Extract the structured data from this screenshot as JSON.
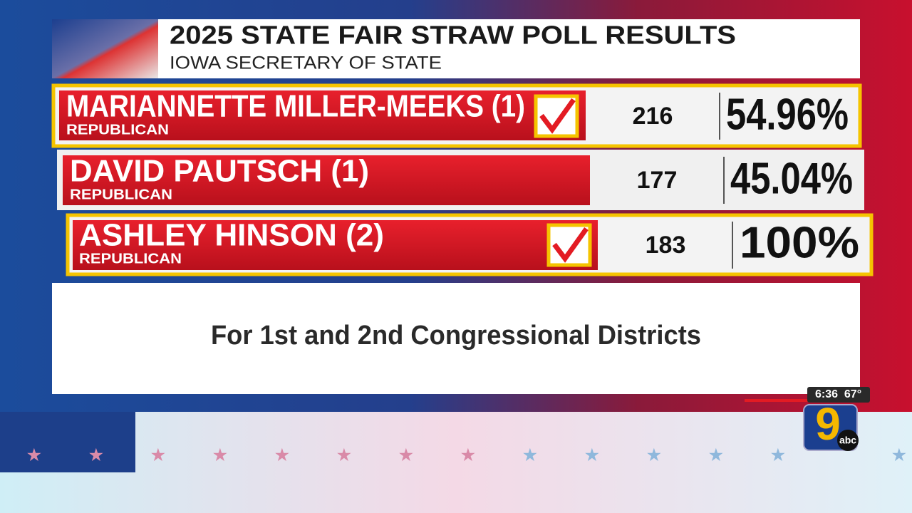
{
  "header": {
    "title": "2025 STATE FAIR STRAW POLL RESULTS",
    "subtitle": "IOWA SECRETARY OF STATE"
  },
  "rows": [
    {
      "name": "MARIANNETTE MILLER-MEEKS (1)",
      "party": "REPUBLICAN",
      "votes": 216,
      "percent": "54.96%"
    },
    {
      "name": "DAVID PAUTSCH (1)",
      "party": "REPUBLICAN",
      "votes": 177,
      "percent": "45.04%"
    },
    {
      "name": "ASHLEY HINSON (2)",
      "party": "REPUBLICAN",
      "votes": 183,
      "percent": "100%"
    }
  ],
  "note": "For 1st and 2nd Congressional Districts",
  "status": {
    "time": "6:36",
    "temperature": "67°",
    "logo_number": "9",
    "logo_network": "abc"
  }
}
